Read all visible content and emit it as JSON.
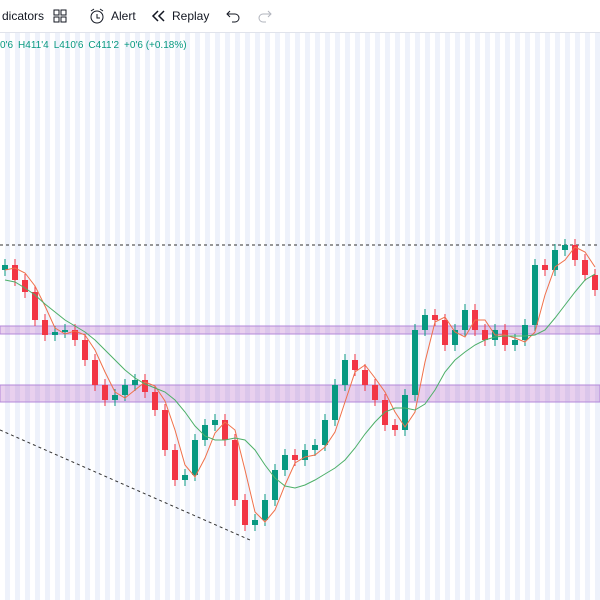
{
  "toolbar": {
    "indicators": "dicators",
    "alert": "Alert",
    "replay": "Replay"
  },
  "ohlc": {
    "open": "0'6",
    "high": "H411'4",
    "low": "L410'6",
    "close": "C411'2",
    "change": "+0'6 (+0.18%)"
  },
  "chart_data": {
    "type": "candlestick",
    "open": [
      330,
      335,
      320,
      308,
      280,
      265,
      268,
      270,
      260,
      240,
      215,
      200,
      205,
      215,
      220,
      208,
      190,
      150,
      120,
      125,
      160,
      175,
      180,
      160,
      100,
      75,
      80,
      100,
      130,
      145,
      140,
      150,
      155,
      180,
      215,
      240,
      230,
      215,
      200,
      175,
      170,
      205,
      270,
      285,
      280,
      255,
      270,
      290,
      270,
      260,
      270,
      255,
      260,
      275,
      335,
      330,
      350,
      355,
      340,
      325
    ],
    "high": [
      341,
      341,
      326,
      314,
      286,
      274,
      276,
      276,
      266,
      246,
      221,
      211,
      221,
      226,
      226,
      214,
      196,
      156,
      131,
      166,
      181,
      186,
      186,
      166,
      106,
      86,
      106,
      136,
      151,
      151,
      156,
      161,
      186,
      221,
      246,
      246,
      236,
      221,
      206,
      181,
      211,
      276,
      291,
      291,
      286,
      276,
      296,
      296,
      276,
      276,
      276,
      266,
      281,
      341,
      341,
      356,
      361,
      361,
      346,
      331
    ],
    "low": [
      324,
      314,
      302,
      274,
      259,
      259,
      262,
      254,
      234,
      209,
      194,
      194,
      199,
      209,
      202,
      184,
      144,
      114,
      114,
      119,
      154,
      169,
      154,
      94,
      69,
      69,
      74,
      94,
      124,
      134,
      134,
      144,
      149,
      174,
      209,
      224,
      209,
      194,
      169,
      164,
      164,
      199,
      264,
      274,
      249,
      249,
      264,
      264,
      254,
      254,
      249,
      249,
      254,
      269,
      324,
      324,
      344,
      334,
      319,
      304
    ],
    "close": [
      335,
      320,
      308,
      280,
      265,
      268,
      270,
      260,
      240,
      215,
      200,
      205,
      215,
      220,
      208,
      190,
      150,
      120,
      125,
      160,
      175,
      180,
      160,
      100,
      75,
      80,
      100,
      130,
      145,
      140,
      150,
      155,
      180,
      215,
      240,
      230,
      215,
      200,
      175,
      170,
      205,
      270,
      285,
      280,
      255,
      270,
      290,
      270,
      260,
      270,
      255,
      260,
      275,
      335,
      330,
      350,
      355,
      340,
      325,
      310
    ],
    "up_color": "#089981",
    "down_color": "#f23645",
    "lines": [
      {
        "color": "#f0704a",
        "values": [
          330,
          332,
          327,
          314,
          294,
          272,
          266,
          269,
          265,
          250,
          228,
          208,
          202,
          210,
          218,
          214,
          199,
          170,
          135,
          123,
          142,
          167,
          178,
          170,
          130,
          88,
          78,
          90,
          115,
          137,
          143,
          145,
          153,
          168,
          198,
          228,
          235,
          222,
          208,
          188,
          173,
          188,
          238,
          278,
          283,
          268,
          263,
          280,
          280,
          265,
          265,
          262,
          258,
          268,
          305,
          333,
          340,
          353,
          348,
          333
        ]
      },
      {
        "color": "#4caf68",
        "values": [
          320,
          318,
          312,
          305,
          296,
          288,
          280,
          274,
          268,
          260,
          250,
          240,
          230,
          222,
          216,
          212,
          208,
          200,
          188,
          174,
          164,
          160,
          160,
          162,
          160,
          150,
          135,
          122,
          114,
          112,
          115,
          120,
          126,
          132,
          140,
          152,
          166,
          178,
          188,
          192,
          192,
          190,
          196,
          210,
          228,
          240,
          248,
          255,
          260,
          263,
          264,
          264,
          264,
          265,
          270,
          282,
          295,
          308,
          320,
          326
        ]
      }
    ],
    "resistance": 355,
    "zones": [
      [
        266,
        274
      ],
      [
        198,
        215
      ]
    ],
    "ylim": [
      0,
      565
    ]
  }
}
